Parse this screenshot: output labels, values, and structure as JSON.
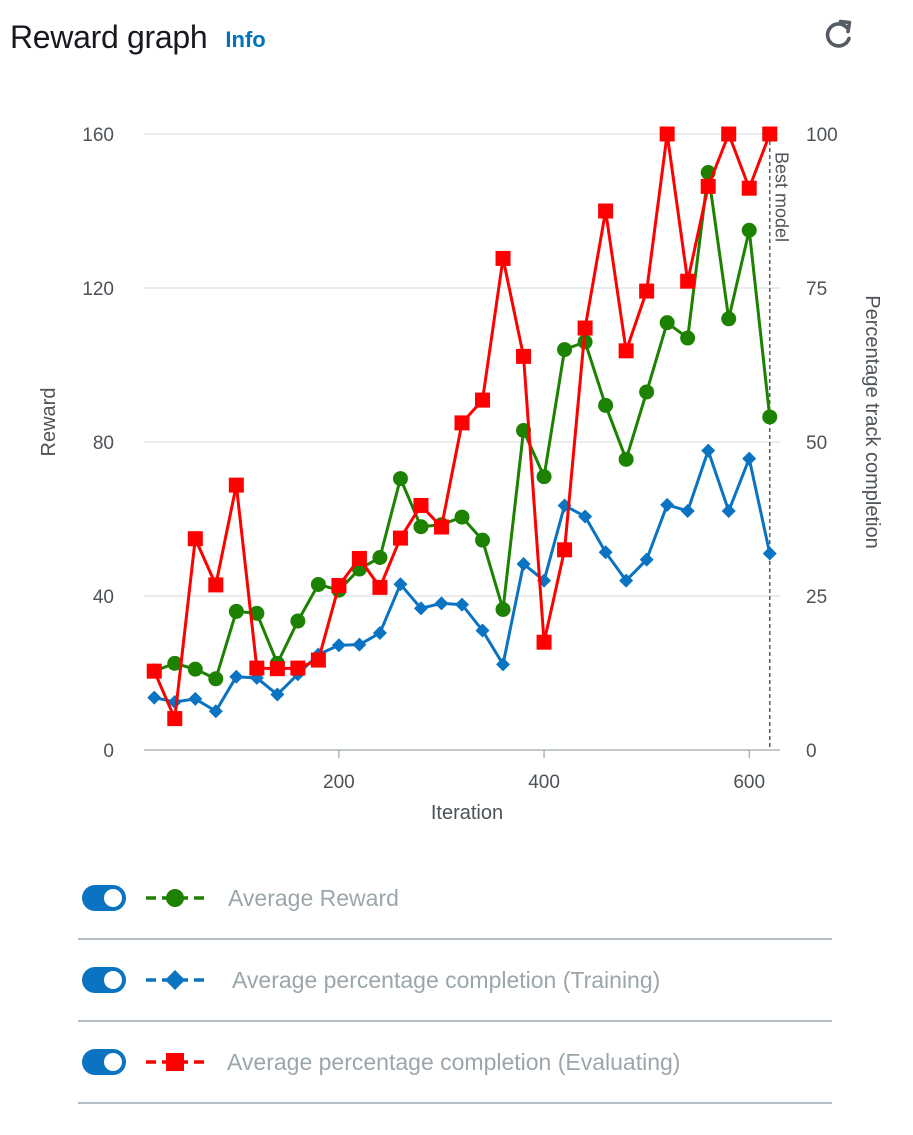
{
  "header": {
    "title": "Reward graph",
    "info_label": "Info",
    "refresh_icon": "refresh-icon"
  },
  "legend": [
    {
      "label": "Average Reward",
      "color": "#1d8102",
      "marker": "circle",
      "enabled": true
    },
    {
      "label": "Average percentage completion (Training)",
      "color": "#0a73c2",
      "marker": "diamond",
      "enabled": true
    },
    {
      "label": "Average percentage completion (Evaluating)",
      "color": "#ff0000",
      "marker": "square",
      "enabled": true
    }
  ],
  "chart_data": {
    "type": "line",
    "xlabel": "Iteration",
    "ylabel": "Reward",
    "y2label": "Percentage track completion",
    "xlim": [
      10,
      630
    ],
    "ylim": [
      0,
      160
    ],
    "y2lim": [
      0,
      100
    ],
    "xticks": [
      200,
      400,
      600
    ],
    "yticks": [
      0,
      40,
      80,
      120,
      160
    ],
    "y2ticks": [
      0,
      25,
      50,
      75,
      100
    ],
    "grid": true,
    "best_model": {
      "x": 620,
      "label": "Best model"
    },
    "x": [
      20,
      40,
      60,
      80,
      100,
      120,
      140,
      160,
      180,
      200,
      220,
      240,
      260,
      280,
      300,
      320,
      340,
      360,
      380,
      400,
      420,
      440,
      460,
      480,
      500,
      520,
      540,
      560,
      580,
      600,
      620
    ],
    "series": [
      {
        "name": "Average Reward",
        "axis": "left",
        "color": "#1d8102",
        "marker": "circle",
        "values": [
          20.5,
          22.5,
          21,
          18.5,
          36,
          35.5,
          22.5,
          33.5,
          43,
          41.5,
          47,
          50,
          70.5,
          58,
          58.5,
          60.5,
          54.5,
          36.5,
          83,
          71,
          104,
          106,
          89.5,
          75.5,
          93,
          111,
          107,
          150,
          112,
          135,
          86.5
        ]
      },
      {
        "name": "Average percentage completion (Training)",
        "axis": "right",
        "color": "#0a73c2",
        "marker": "diamond",
        "values": [
          8.5,
          7.8,
          8.3,
          6.3,
          11.9,
          11.7,
          9,
          12.3,
          15.5,
          17,
          17.1,
          19,
          26.9,
          23,
          23.8,
          23.6,
          19.4,
          13.9,
          30.2,
          27.5,
          39.7,
          37.9,
          32.1,
          27.5,
          30.9,
          39.8,
          38.8,
          48.6,
          38.8,
          47.3,
          31.9
        ]
      },
      {
        "name": "Average percentage completion (Evaluating)",
        "axis": "right",
        "color": "#ff0000",
        "marker": "square",
        "values": [
          12.8,
          5.1,
          34.3,
          26.8,
          43,
          13.3,
          13.2,
          13.3,
          14.6,
          26.7,
          31.1,
          26.4,
          34.4,
          39.7,
          36.2,
          53.1,
          56.8,
          79.8,
          63.9,
          17.5,
          32.5,
          68.5,
          87.5,
          64.8,
          74.5,
          100,
          76.1,
          91.5,
          100,
          91.2,
          100
        ]
      }
    ]
  }
}
